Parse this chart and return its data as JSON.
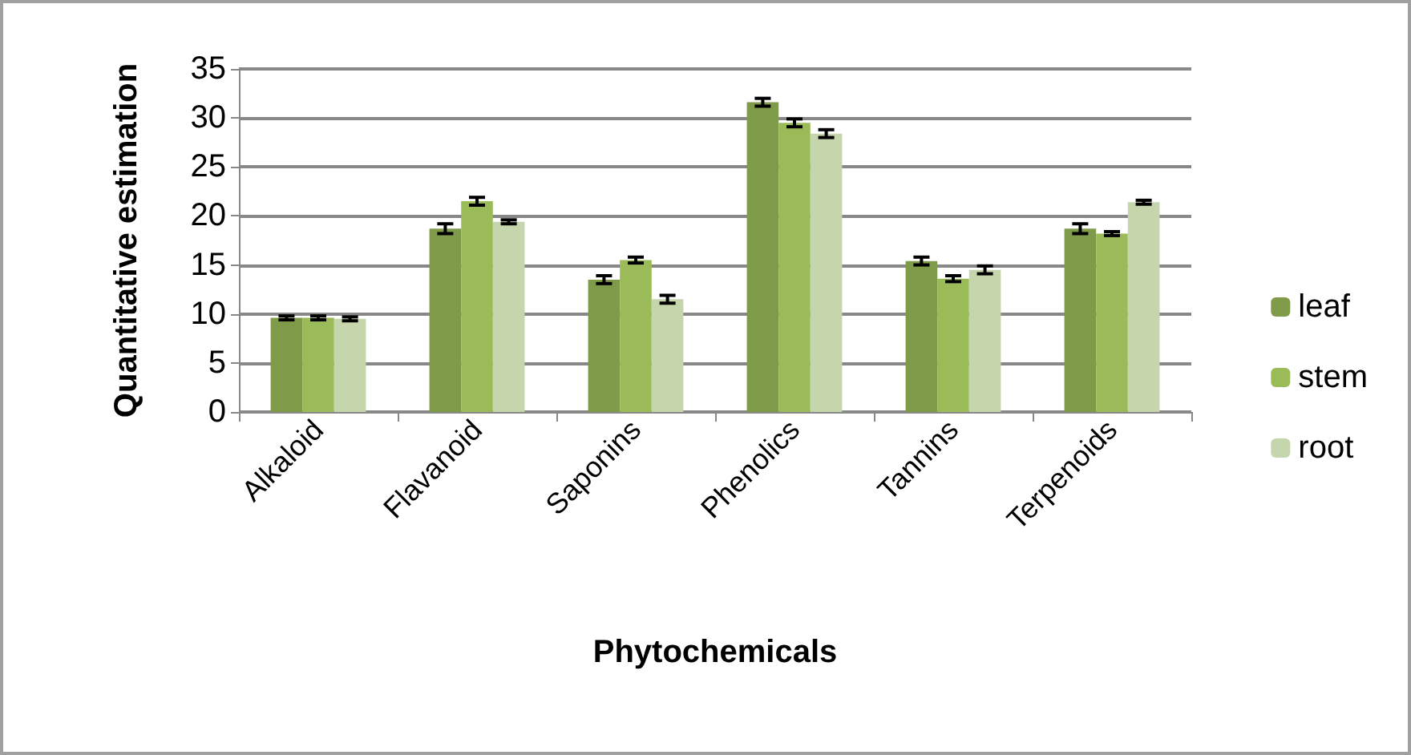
{
  "chart_data": {
    "type": "bar",
    "xlabel": "Phytochemicals",
    "ylabel": "Quantitative estimation",
    "categories": [
      "Alkaloid",
      "Flavanoid",
      "Saponins",
      "Phenolics",
      "Tannins",
      "Terpenoids"
    ],
    "series": [
      {
        "name": "leaf",
        "color": "#7f9a48",
        "values": [
          9.6,
          18.7,
          13.5,
          31.6,
          15.4,
          18.7
        ],
        "errors": [
          0.2,
          0.5,
          0.4,
          0.4,
          0.4,
          0.5
        ]
      },
      {
        "name": "stem",
        "color": "#9bbb59",
        "values": [
          9.6,
          21.5,
          15.5,
          29.5,
          13.6,
          18.2
        ],
        "errors": [
          0.2,
          0.4,
          0.3,
          0.4,
          0.3,
          0.2
        ]
      },
      {
        "name": "root",
        "color": "#c6d6ac",
        "values": [
          9.5,
          19.4,
          11.5,
          28.4,
          14.5,
          21.4
        ],
        "errors": [
          0.2,
          0.2,
          0.4,
          0.4,
          0.4,
          0.2
        ]
      }
    ],
    "ylim": [
      0,
      35
    ],
    "yticks": [
      0,
      5,
      10,
      15,
      20,
      25,
      30,
      35
    ],
    "grid": "y",
    "legend": "right"
  }
}
